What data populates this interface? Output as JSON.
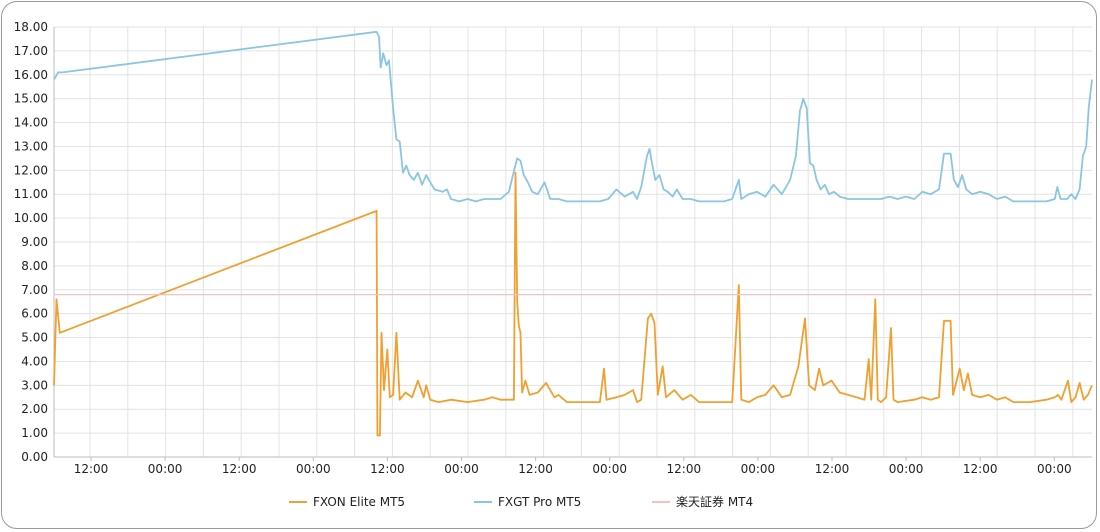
{
  "chart_data": {
    "type": "line",
    "ylim": [
      0,
      18
    ],
    "y_ticks": [
      "0.00",
      "1.00",
      "2.00",
      "3.00",
      "4.00",
      "5.00",
      "6.00",
      "7.00",
      "8.00",
      "9.00",
      "10.00",
      "11.00",
      "12.00",
      "13.00",
      "14.00",
      "15.00",
      "16.00",
      "17.00",
      "18.00"
    ],
    "x_tick_labels": [
      "12:00",
      "00:00",
      "12:00",
      "00:00",
      "12:00",
      "00:00",
      "12:00",
      "00:00",
      "12:00",
      "00:00",
      "12:00",
      "00:00",
      "12:00",
      "00:00"
    ],
    "grid": true,
    "legend_position": "bottom",
    "series": [
      {
        "name": "FXON Elite MT5",
        "color": "#f0a030",
        "points": [
          [
            0,
            3.0
          ],
          [
            0.3,
            6.6
          ],
          [
            0.7,
            5.2
          ],
          [
            39,
            10.3
          ],
          [
            39.1,
            0.9
          ],
          [
            39.4,
            0.9
          ],
          [
            39.6,
            5.2
          ],
          [
            39.9,
            2.8
          ],
          [
            40.3,
            4.5
          ],
          [
            40.6,
            2.5
          ],
          [
            41.0,
            2.6
          ],
          [
            41.4,
            5.2
          ],
          [
            41.8,
            2.4
          ],
          [
            42.5,
            2.7
          ],
          [
            43.3,
            2.5
          ],
          [
            44,
            3.2
          ],
          [
            44.7,
            2.5
          ],
          [
            45,
            3.0
          ],
          [
            45.5,
            2.4
          ],
          [
            46.5,
            2.3
          ],
          [
            48,
            2.4
          ],
          [
            50,
            2.3
          ],
          [
            52,
            2.4
          ],
          [
            53,
            2.5
          ],
          [
            54,
            2.4
          ],
          [
            55.6,
            2.4
          ],
          [
            55.8,
            11.9
          ],
          [
            56.0,
            6.5
          ],
          [
            56.2,
            5.5
          ],
          [
            56.4,
            5.2
          ],
          [
            56.6,
            2.7
          ],
          [
            57,
            3.2
          ],
          [
            57.5,
            2.6
          ],
          [
            58.5,
            2.7
          ],
          [
            59.5,
            3.1
          ],
          [
            60.5,
            2.5
          ],
          [
            61,
            2.6
          ],
          [
            62,
            2.3
          ],
          [
            64,
            2.3
          ],
          [
            66,
            2.3
          ],
          [
            66.5,
            3.7
          ],
          [
            66.8,
            2.4
          ],
          [
            68,
            2.5
          ],
          [
            69,
            2.6
          ],
          [
            70,
            2.8
          ],
          [
            70.5,
            2.3
          ],
          [
            71,
            2.4
          ],
          [
            71.8,
            5.8
          ],
          [
            72.2,
            6.0
          ],
          [
            72.6,
            5.6
          ],
          [
            73,
            2.6
          ],
          [
            73.6,
            3.8
          ],
          [
            74,
            2.5
          ],
          [
            75,
            2.8
          ],
          [
            76,
            2.4
          ],
          [
            77,
            2.6
          ],
          [
            78,
            2.3
          ],
          [
            81,
            2.3
          ],
          [
            82,
            2.3
          ],
          [
            82.8,
            7.2
          ],
          [
            83.1,
            2.4
          ],
          [
            84,
            2.3
          ],
          [
            85,
            2.5
          ],
          [
            86,
            2.6
          ],
          [
            87,
            3.0
          ],
          [
            88,
            2.5
          ],
          [
            89,
            2.6
          ],
          [
            90,
            3.8
          ],
          [
            90.8,
            5.8
          ],
          [
            91.3,
            3.0
          ],
          [
            92,
            2.8
          ],
          [
            92.5,
            3.7
          ],
          [
            93,
            3.0
          ],
          [
            94,
            3.2
          ],
          [
            95,
            2.7
          ],
          [
            96,
            2.6
          ],
          [
            97,
            2.5
          ],
          [
            98,
            2.4
          ],
          [
            98.5,
            4.1
          ],
          [
            98.8,
            2.4
          ],
          [
            99.3,
            6.6
          ],
          [
            99.6,
            2.4
          ],
          [
            100,
            2.3
          ],
          [
            100.6,
            2.5
          ],
          [
            101.2,
            5.4
          ],
          [
            101.5,
            2.4
          ],
          [
            102,
            2.3
          ],
          [
            104,
            2.4
          ],
          [
            105,
            2.5
          ],
          [
            106,
            2.4
          ],
          [
            107,
            2.5
          ],
          [
            107.6,
            5.7
          ],
          [
            108.4,
            5.7
          ],
          [
            108.7,
            2.6
          ],
          [
            109,
            3.0
          ],
          [
            109.5,
            3.7
          ],
          [
            110,
            2.8
          ],
          [
            110.5,
            3.5
          ],
          [
            111,
            2.6
          ],
          [
            112,
            2.5
          ],
          [
            113,
            2.6
          ],
          [
            114,
            2.4
          ],
          [
            115,
            2.5
          ],
          [
            116,
            2.3
          ],
          [
            118,
            2.3
          ],
          [
            120,
            2.4
          ],
          [
            121,
            2.5
          ],
          [
            121.4,
            2.6
          ],
          [
            121.8,
            2.4
          ],
          [
            122.6,
            3.2
          ],
          [
            123,
            2.3
          ],
          [
            123.5,
            2.5
          ],
          [
            124,
            3.1
          ],
          [
            124.5,
            2.4
          ],
          [
            125,
            2.6
          ],
          [
            125.5,
            3.0
          ]
        ]
      },
      {
        "name": "FXGT Pro MT5",
        "color": "#8ac6e2",
        "points": [
          [
            0,
            15.8
          ],
          [
            0.5,
            16.1
          ],
          [
            1,
            16.1
          ],
          [
            39,
            17.8
          ],
          [
            39.3,
            17.6
          ],
          [
            39.5,
            16.3
          ],
          [
            39.8,
            16.9
          ],
          [
            40.2,
            16.4
          ],
          [
            40.5,
            16.6
          ],
          [
            41,
            14.6
          ],
          [
            41.4,
            13.3
          ],
          [
            41.8,
            13.2
          ],
          [
            42.2,
            11.9
          ],
          [
            42.6,
            12.2
          ],
          [
            43,
            11.8
          ],
          [
            43.5,
            11.6
          ],
          [
            44,
            11.9
          ],
          [
            44.5,
            11.4
          ],
          [
            45,
            11.8
          ],
          [
            45.5,
            11.5
          ],
          [
            46,
            11.2
          ],
          [
            47,
            11.1
          ],
          [
            47.5,
            11.2
          ],
          [
            48,
            10.8
          ],
          [
            49,
            10.7
          ],
          [
            50,
            10.8
          ],
          [
            51,
            10.7
          ],
          [
            52,
            10.8
          ],
          [
            53,
            10.8
          ],
          [
            54,
            10.8
          ],
          [
            55,
            11.1
          ],
          [
            55.7,
            12.1
          ],
          [
            56,
            12.5
          ],
          [
            56.4,
            12.4
          ],
          [
            56.8,
            11.8
          ],
          [
            57.3,
            11.5
          ],
          [
            57.8,
            11.1
          ],
          [
            58.5,
            11.0
          ],
          [
            59.3,
            11.5
          ],
          [
            60,
            10.8
          ],
          [
            61,
            10.8
          ],
          [
            62,
            10.7
          ],
          [
            64,
            10.7
          ],
          [
            66,
            10.7
          ],
          [
            67,
            10.8
          ],
          [
            68,
            11.2
          ],
          [
            69,
            10.9
          ],
          [
            70,
            11.1
          ],
          [
            70.5,
            10.8
          ],
          [
            71,
            11.3
          ],
          [
            71.7,
            12.6
          ],
          [
            72,
            12.9
          ],
          [
            72.3,
            12.3
          ],
          [
            72.7,
            11.6
          ],
          [
            73.2,
            11.8
          ],
          [
            73.7,
            11.2
          ],
          [
            74.2,
            11.1
          ],
          [
            74.8,
            10.9
          ],
          [
            75.3,
            11.2
          ],
          [
            76,
            10.8
          ],
          [
            77,
            10.8
          ],
          [
            78,
            10.7
          ],
          [
            80,
            10.7
          ],
          [
            81,
            10.7
          ],
          [
            82,
            10.8
          ],
          [
            82.8,
            11.6
          ],
          [
            83.1,
            10.8
          ],
          [
            84,
            11.0
          ],
          [
            85,
            11.1
          ],
          [
            86,
            10.9
          ],
          [
            87,
            11.4
          ],
          [
            88,
            11.0
          ],
          [
            89,
            11.6
          ],
          [
            89.7,
            12.6
          ],
          [
            90.2,
            14.5
          ],
          [
            90.6,
            15.0
          ],
          [
            91,
            14.6
          ],
          [
            91.4,
            12.3
          ],
          [
            91.8,
            12.2
          ],
          [
            92.2,
            11.6
          ],
          [
            92.7,
            11.2
          ],
          [
            93.2,
            11.4
          ],
          [
            93.7,
            11.0
          ],
          [
            94.3,
            11.1
          ],
          [
            95,
            10.9
          ],
          [
            96,
            10.8
          ],
          [
            97,
            10.8
          ],
          [
            98,
            10.8
          ],
          [
            99,
            10.8
          ],
          [
            100,
            10.8
          ],
          [
            101,
            10.9
          ],
          [
            102,
            10.8
          ],
          [
            103,
            10.9
          ],
          [
            104,
            10.8
          ],
          [
            105,
            11.1
          ],
          [
            106,
            11.0
          ],
          [
            107,
            11.2
          ],
          [
            107.6,
            12.7
          ],
          [
            108.4,
            12.7
          ],
          [
            108.8,
            11.6
          ],
          [
            109.3,
            11.3
          ],
          [
            109.8,
            11.8
          ],
          [
            110.3,
            11.2
          ],
          [
            111,
            11.0
          ],
          [
            112,
            11.1
          ],
          [
            113,
            11.0
          ],
          [
            114,
            10.8
          ],
          [
            115,
            10.9
          ],
          [
            116,
            10.7
          ],
          [
            118,
            10.7
          ],
          [
            120,
            10.7
          ],
          [
            121,
            10.8
          ],
          [
            121.3,
            11.3
          ],
          [
            121.7,
            10.8
          ],
          [
            122.5,
            10.8
          ],
          [
            123,
            11.0
          ],
          [
            123.5,
            10.8
          ],
          [
            124,
            11.2
          ],
          [
            124.4,
            12.6
          ],
          [
            124.8,
            13.0
          ],
          [
            125.1,
            14.6
          ],
          [
            125.5,
            15.8
          ]
        ]
      },
      {
        "name": "楽天証券 MT4",
        "color": "#f5c0c0",
        "points": [
          [
            0,
            6.8
          ],
          [
            125.5,
            6.8
          ]
        ]
      }
    ]
  }
}
